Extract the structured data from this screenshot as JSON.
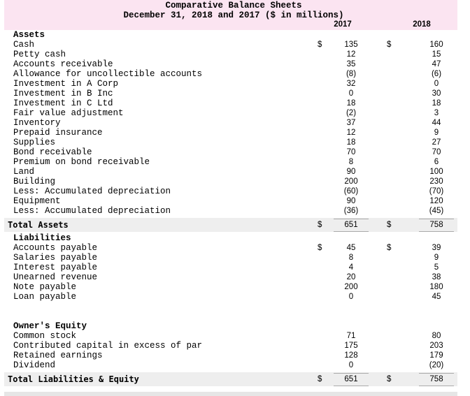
{
  "header": {
    "title": "Comparative Balance Sheets",
    "subtitle": "December 31, 2018 and 2017 ($ in millions)",
    "columns": [
      "2017",
      "2018"
    ]
  },
  "rows": [
    {
      "label": "Assets",
      "style": "section"
    },
    {
      "label": "Cash",
      "currency": "$",
      "values": [
        "135",
        "160"
      ]
    },
    {
      "label": "Petty cash",
      "values": [
        "12",
        "15"
      ]
    },
    {
      "label": "Accounts receivable",
      "values": [
        "35",
        "47"
      ]
    },
    {
      "label": "Allowance for uncollectible accounts",
      "values": [
        "(8)",
        "(6)"
      ]
    },
    {
      "label": "Investment in A Corp",
      "values": [
        "32",
        "0"
      ]
    },
    {
      "label": "Investment in B Inc",
      "values": [
        "0",
        "30"
      ]
    },
    {
      "label": "Investment in C Ltd",
      "values": [
        "18",
        "18"
      ]
    },
    {
      "label": "Fair value adjustment",
      "values": [
        "(2)",
        "3"
      ]
    },
    {
      "label": "Inventory",
      "values": [
        "37",
        "44"
      ]
    },
    {
      "label": "Prepaid insurance",
      "values": [
        "12",
        "9"
      ]
    },
    {
      "label": "Supplies",
      "values": [
        "18",
        "27"
      ]
    },
    {
      "label": "Bond receivable",
      "values": [
        "70",
        "70"
      ]
    },
    {
      "label": "Premium on bond receivable",
      "values": [
        "8",
        "6"
      ]
    },
    {
      "label": "Land",
      "values": [
        "90",
        "100"
      ]
    },
    {
      "label": "Building",
      "values": [
        "200",
        "230"
      ]
    },
    {
      "label": "Less: Accumulated depreciation",
      "values": [
        "(60)",
        "(70)"
      ]
    },
    {
      "label": "Equipment",
      "values": [
        "90",
        "120"
      ]
    },
    {
      "label": "Less: Accumulated depreciation",
      "values": [
        "(36)",
        "(45)"
      ]
    },
    {
      "label": "Total Assets",
      "style": "total",
      "currency": "$",
      "values": [
        "651",
        "758"
      ]
    },
    {
      "label": "Liabilities",
      "style": "section"
    },
    {
      "label": "Accounts payable",
      "currency": "$",
      "values": [
        "45",
        "39"
      ]
    },
    {
      "label": "Salaries payable",
      "values": [
        "8",
        "9"
      ]
    },
    {
      "label": "Interest payable",
      "values": [
        "4",
        "5"
      ]
    },
    {
      "label": "Unearned revenue",
      "values": [
        "20",
        "38"
      ]
    },
    {
      "label": "Note payable",
      "values": [
        "200",
        "180"
      ]
    },
    {
      "label": "Loan payable",
      "values": [
        "0",
        "45"
      ]
    },
    {
      "label": "Owner's Equity",
      "style": "section"
    },
    {
      "label": "Common stock",
      "values": [
        "71",
        "80"
      ]
    },
    {
      "label": "Contributed capital in excess of par",
      "values": [
        "175",
        "203"
      ]
    },
    {
      "label": "Retained earnings",
      "values": [
        "128",
        "179"
      ]
    },
    {
      "label": "Dividend",
      "values": [
        "0",
        "(20)"
      ]
    },
    {
      "label": "Total Liabilities & Equity",
      "style": "total",
      "currency": "$",
      "values": [
        "651",
        "758"
      ]
    }
  ]
}
